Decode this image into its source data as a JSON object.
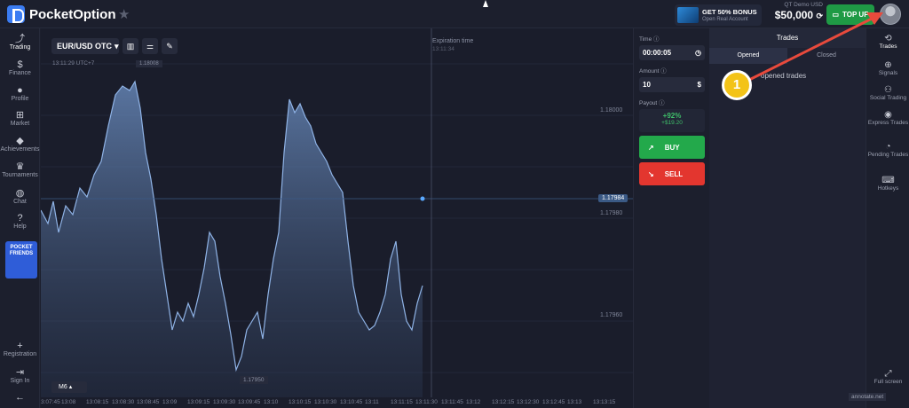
{
  "header": {
    "logo_text": "PocketOption",
    "bonus_title": "GET 50% BONUS",
    "bonus_sub": "Open Real Account",
    "account_label": "QT Demo   USD",
    "balance": "$50,000",
    "topup_label": "TOP UP"
  },
  "leftnav": {
    "items": [
      {
        "label": "Trading",
        "icon": "chart-icon"
      },
      {
        "label": "Finance",
        "icon": "dollar-icon"
      },
      {
        "label": "Profile",
        "icon": "user-icon"
      },
      {
        "label": "Market",
        "icon": "cart-icon"
      },
      {
        "label": "Achievements",
        "icon": "diamond-icon"
      },
      {
        "label": "Tournaments",
        "icon": "trophy-icon"
      },
      {
        "label": "Chat",
        "icon": "chat-icon"
      },
      {
        "label": "Help",
        "icon": "help-icon"
      }
    ],
    "friends_label": "POCKET FRIENDS",
    "bottom": [
      {
        "label": "Registration",
        "icon": "user-plus-icon"
      },
      {
        "label": "Sign In",
        "icon": "sign-in-icon"
      }
    ]
  },
  "chart": {
    "asset": "EUR/USD OTC",
    "clock": "13:11:29 UTC+7",
    "top_price": "1.18008",
    "expiration_label": "Expiration time",
    "expiration_time": "13:11:34",
    "y_labels": [
      "1.18000",
      "1.17980",
      "1.17960"
    ],
    "current_price": "1.17984",
    "low_price": "1.17950",
    "timeframe": "M6",
    "x_labels": [
      "3:07:45",
      "13:08",
      "13:08:15",
      "13:08:30",
      "13:08:45",
      "13:09",
      "13:09:15",
      "13:09:30",
      "13:09:45",
      "13:10",
      "13:10:15",
      "13:10:30",
      "13:10:45",
      "13:11",
      "13:11:15",
      "13:11:30",
      "13:11:45",
      "13:12",
      "13:12:15",
      "13:12:30",
      "13:12:45",
      "13:13",
      "13:13:15"
    ],
    "accent": "#5c8ed6"
  },
  "panel": {
    "time_label": "Time",
    "time_value": "00:00:05",
    "amount_label": "Amount",
    "amount_value": "10",
    "payout_label": "Payout",
    "payout_pct": "+92%",
    "payout_amt": "+$19.20",
    "buy_label": "BUY",
    "sell_label": "SELL"
  },
  "trades": {
    "title": "Trades",
    "tab_opened": "Opened",
    "tab_closed": "Closed",
    "empty": "opened trades"
  },
  "rightnav": {
    "items": [
      {
        "label": "Trades",
        "icon": "history-icon"
      },
      {
        "label": "Signals",
        "icon": "signal-icon"
      },
      {
        "label": "Social Trading",
        "icon": "social-icon"
      },
      {
        "label": "Express Trades",
        "icon": "express-icon"
      },
      {
        "label": "Pending Trades",
        "icon": "pending-icon"
      },
      {
        "label": "Hotkeys",
        "icon": "keyboard-icon"
      }
    ],
    "fullscreen": "Full screen"
  },
  "annotation": {
    "step": "1",
    "watermark": "annotate.net"
  }
}
